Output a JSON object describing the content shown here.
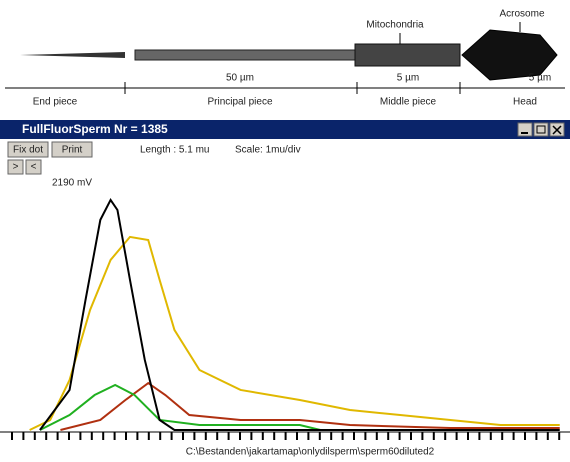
{
  "diagram": {
    "labels": {
      "mitochondria": "Mitochondria",
      "acrosome": "Acrosome"
    },
    "lengths": [
      "50 µm",
      "5 µm",
      "5 µm"
    ],
    "parts": [
      "End piece",
      "Principal piece",
      "Middle piece",
      "Head"
    ]
  },
  "window": {
    "title": "FullFluorSperm Nr = 1385",
    "buttons": [
      "Fix dot",
      "Print",
      ">",
      "<"
    ],
    "length": "Length : 5.1 mu",
    "scale": "Scale: 1mu/div",
    "file": "C:\\Bestanden\\jakartamap\\onlydilsperm\\sperm60diluted2"
  },
  "chart_data": {
    "type": "line",
    "xlim": [
      0,
      49.3
    ],
    "ylim": [
      0,
      2190
    ],
    "yticks": [
      {
        "value": 2190,
        "label": "2190 mV"
      }
    ],
    "series": [
      {
        "color": "#e0b800",
        "x": [
          1.9,
          3.7,
          5.4,
          7.2,
          9.0,
          10.7,
          12.3,
          13.3,
          14.6,
          16.8,
          20.4,
          25.6,
          30.0,
          34.4,
          38.8,
          43.2,
          48.4
        ],
        "values": [
          0,
          89,
          443,
          1064,
          1508,
          1712,
          1685,
          1331,
          887,
          532,
          355,
          266,
          177,
          133,
          89,
          44,
          44
        ]
      },
      {
        "color": "#b03010",
        "x": [
          4.6,
          8.1,
          10.3,
          12.3,
          13.8,
          15.9,
          20.4,
          25.6,
          30.0,
          38.8,
          48.4
        ],
        "values": [
          0,
          89,
          266,
          416,
          310,
          133,
          89,
          89,
          44,
          18,
          18
        ]
      },
      {
        "color": "#20b020",
        "x": [
          2.8,
          5.4,
          7.6,
          9.4,
          11.1,
          13.3,
          16.8,
          25.6,
          27.4
        ],
        "values": [
          0,
          133,
          310,
          399,
          310,
          89,
          44,
          44,
          0
        ]
      },
      {
        "color": "#000000",
        "x": [
          2.8,
          5.4,
          6.8,
          8.1,
          9.0,
          9.6,
          10.7,
          12.0,
          13.3,
          14.6,
          48.4
        ],
        "values": [
          0,
          355,
          1153,
          1863,
          2040,
          1951,
          1331,
          621,
          89,
          0,
          0
        ]
      }
    ]
  }
}
